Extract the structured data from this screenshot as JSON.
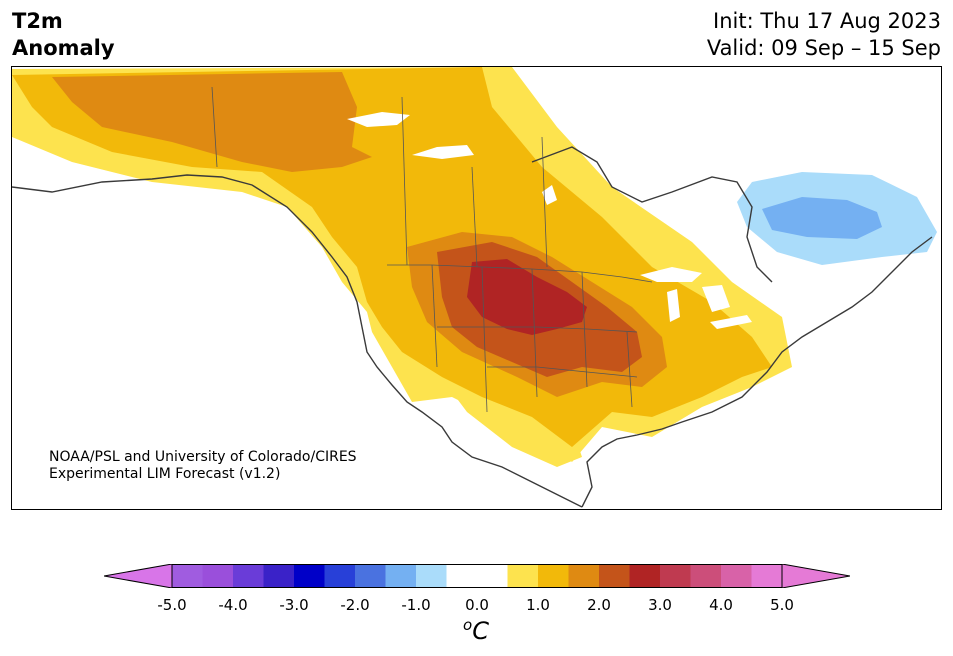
{
  "header": {
    "variable": "T2m",
    "subtitle": "Anomaly",
    "init": "Init: Thu 17 Aug 2023",
    "valid": "Valid: 09 Sep – 15 Sep"
  },
  "credit": {
    "line1": "NOAA/PSL and University of Colorado/CIRES",
    "line2": "Experimental LIM Forecast (v1.2)"
  },
  "colorbar": {
    "unit_base": "C",
    "unit_sup": "o",
    "ticks": [
      "-5.0",
      "-4.0",
      "-3.0",
      "-2.0",
      "-1.0",
      "0.0",
      "1.0",
      "2.0",
      "3.0",
      "4.0",
      "5.0"
    ],
    "min": -5.0,
    "max": 5.0,
    "bins": [
      {
        "from": -5.0,
        "to": -4.5,
        "color": "#a05ce0"
      },
      {
        "from": -4.5,
        "to": -4.0,
        "color": "#9a4fdb"
      },
      {
        "from": -4.0,
        "to": -3.5,
        "color": "#6a3cd8"
      },
      {
        "from": -3.5,
        "to": -3.0,
        "color": "#3a22c8"
      },
      {
        "from": -3.0,
        "to": -2.5,
        "color": "#0000c8"
      },
      {
        "from": -2.5,
        "to": -2.0,
        "color": "#2840d8"
      },
      {
        "from": -2.0,
        "to": -1.5,
        "color": "#4a72e0"
      },
      {
        "from": -1.5,
        "to": -1.0,
        "color": "#74b0f2"
      },
      {
        "from": -1.0,
        "to": -0.5,
        "color": "#aadcfa"
      },
      {
        "from": -0.5,
        "to": 0.5,
        "color": "#ffffff"
      },
      {
        "from": 0.5,
        "to": 1.0,
        "color": "#fde34e"
      },
      {
        "from": 1.0,
        "to": 1.5,
        "color": "#f2b90a"
      },
      {
        "from": 1.5,
        "to": 2.0,
        "color": "#df8a12"
      },
      {
        "from": 2.0,
        "to": 2.5,
        "color": "#c4541a"
      },
      {
        "from": 2.5,
        "to": 3.0,
        "color": "#b02424"
      },
      {
        "from": 3.0,
        "to": 3.5,
        "color": "#bf3a50"
      },
      {
        "from": 3.5,
        "to": 4.0,
        "color": "#cc4e7a"
      },
      {
        "from": 4.0,
        "to": 4.5,
        "color": "#d862a8"
      },
      {
        "from": 4.5,
        "to": 5.0,
        "color": "#e57ad6"
      }
    ],
    "under_color": "#d875e8",
    "over_color": "#e57ad6"
  }
}
